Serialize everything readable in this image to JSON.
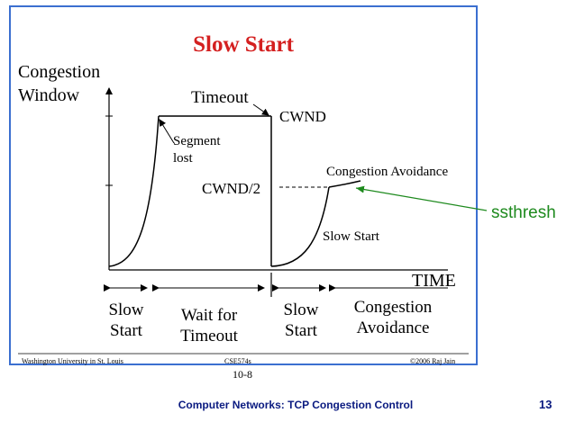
{
  "slide": {
    "title": "Slow Start",
    "y_axis_label": [
      "Congestion",
      "Window"
    ],
    "x_axis_label": "TIME",
    "annotations": {
      "timeout": "Timeout",
      "cwnd": "CWND",
      "segment_lost": [
        "Segment",
        "lost"
      ],
      "cwnd_half": "CWND/2",
      "congestion_avoidance": "Congestion Avoidance",
      "slow_start": "Slow Start",
      "ssthresh": "ssthresh"
    },
    "phases": [
      {
        "line1": "Slow",
        "line2": "Start"
      },
      {
        "line1": "Wait for",
        "line2": "Timeout"
      },
      {
        "line1": "Slow",
        "line2": "Start"
      },
      {
        "line1": "Congestion",
        "line2": "Avoidance"
      }
    ],
    "footer": {
      "left": "Washington University in St. Louis",
      "middle": "CSE574s",
      "right": "©2006 Raj Jain",
      "slide_number": "10-8"
    }
  },
  "page": {
    "bottom_title": "Computer Networks: TCP Congestion Control",
    "page_number": "13"
  },
  "colors": {
    "border": "#3b6fd0",
    "title": "#d42020",
    "ssthresh": "#1e8a1e",
    "footer_text": "#0a1a80"
  }
}
